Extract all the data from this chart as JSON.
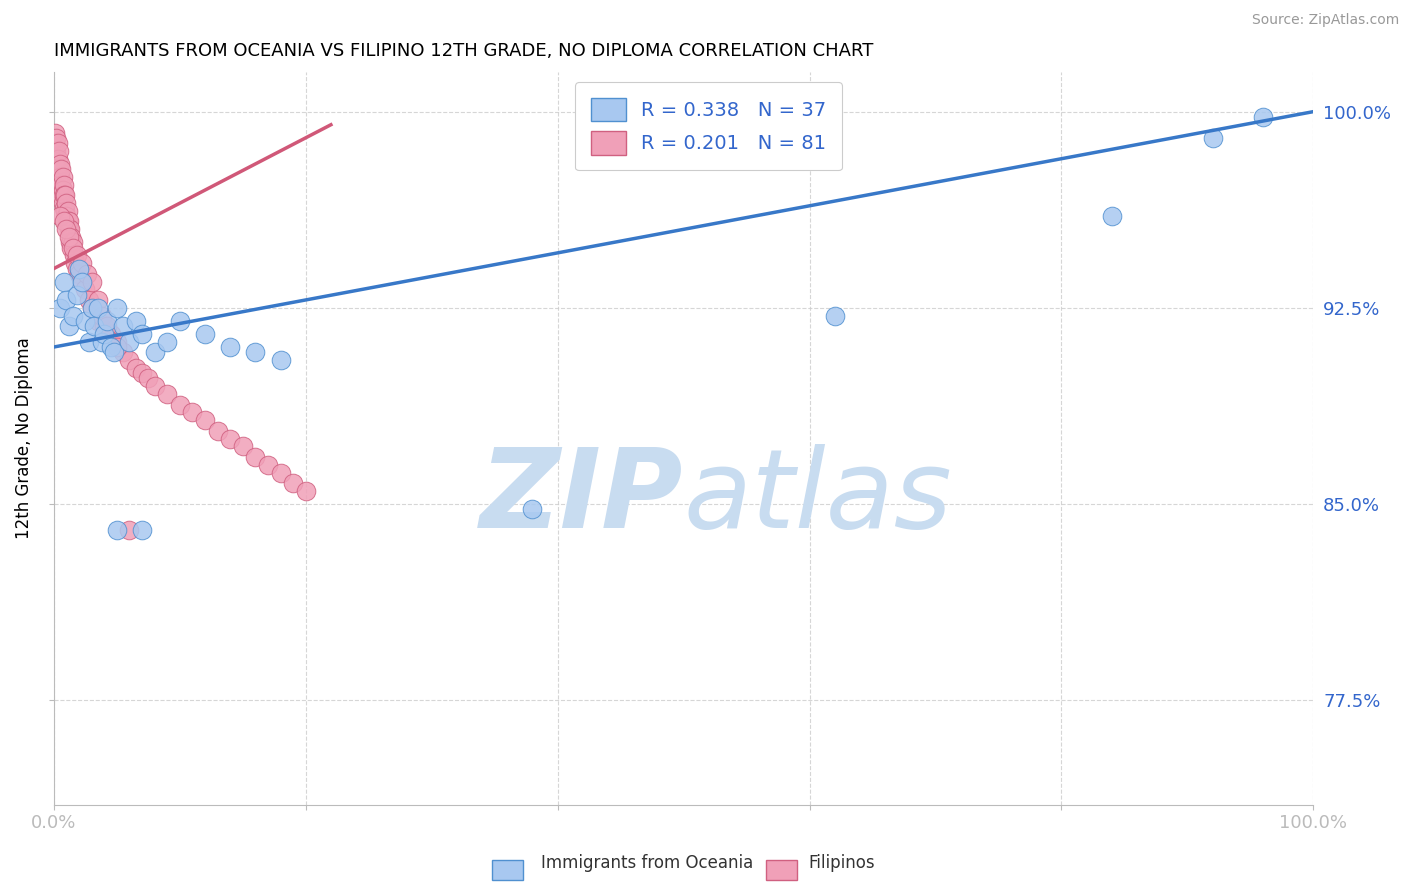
{
  "title": "IMMIGRANTS FROM OCEANIA VS FILIPINO 12TH GRADE, NO DIPLOMA CORRELATION CHART",
  "source": "Source: ZipAtlas.com",
  "ylabel": "12th Grade, No Diploma",
  "legend_blue_r": "R = 0.338",
  "legend_blue_n": "N = 37",
  "legend_pink_r": "R = 0.201",
  "legend_pink_n": "N = 81",
  "blue_color": "#A8C8F0",
  "blue_edge": "#5090D0",
  "pink_color": "#F0A0B8",
  "pink_edge": "#D06080",
  "trend_blue_color": "#3878C8",
  "trend_pink_color": "#D05878",
  "watermark_color": "#C8DCF0",
  "xlim": [
    0.0,
    1.0
  ],
  "ylim": [
    0.735,
    1.015
  ],
  "yticks": [
    0.775,
    0.85,
    0.925,
    1.0
  ],
  "ytick_labels": [
    "77.5%",
    "85.0%",
    "92.5%",
    "100.0%"
  ],
  "xticks": [
    0.0,
    0.2,
    0.4,
    0.6,
    0.8,
    1.0
  ],
  "xtick_labels_show": [
    "0.0%",
    "",
    "",
    "",
    "",
    "100.0%"
  ],
  "blue_scatter_x": [
    0.005,
    0.008,
    0.01,
    0.012,
    0.015,
    0.018,
    0.02,
    0.022,
    0.025,
    0.028,
    0.03,
    0.032,
    0.035,
    0.038,
    0.04,
    0.042,
    0.045,
    0.048,
    0.05,
    0.055,
    0.06,
    0.065,
    0.07,
    0.08,
    0.09,
    0.1,
    0.12,
    0.14,
    0.16,
    0.18,
    0.05,
    0.07,
    0.38,
    0.62,
    0.84,
    0.92,
    0.96
  ],
  "blue_scatter_y": [
    0.925,
    0.935,
    0.928,
    0.918,
    0.922,
    0.93,
    0.94,
    0.935,
    0.92,
    0.912,
    0.925,
    0.918,
    0.925,
    0.912,
    0.915,
    0.92,
    0.91,
    0.908,
    0.925,
    0.918,
    0.912,
    0.92,
    0.915,
    0.908,
    0.912,
    0.92,
    0.915,
    0.91,
    0.908,
    0.905,
    0.84,
    0.84,
    0.848,
    0.922,
    0.96,
    0.99,
    0.998
  ],
  "pink_scatter_x": [
    0.001,
    0.001,
    0.001,
    0.002,
    0.002,
    0.002,
    0.003,
    0.003,
    0.003,
    0.004,
    0.004,
    0.004,
    0.005,
    0.005,
    0.005,
    0.006,
    0.006,
    0.006,
    0.007,
    0.007,
    0.007,
    0.008,
    0.008,
    0.008,
    0.009,
    0.009,
    0.01,
    0.01,
    0.011,
    0.011,
    0.012,
    0.012,
    0.013,
    0.013,
    0.014,
    0.014,
    0.015,
    0.016,
    0.017,
    0.018,
    0.02,
    0.022,
    0.025,
    0.028,
    0.03,
    0.035,
    0.04,
    0.045,
    0.05,
    0.055,
    0.06,
    0.065,
    0.07,
    0.075,
    0.08,
    0.09,
    0.1,
    0.11,
    0.12,
    0.13,
    0.14,
    0.15,
    0.16,
    0.17,
    0.18,
    0.19,
    0.2,
    0.005,
    0.008,
    0.01,
    0.012,
    0.015,
    0.018,
    0.022,
    0.026,
    0.03,
    0.035,
    0.038,
    0.042,
    0.05,
    0.06
  ],
  "pink_scatter_y": [
    0.992,
    0.988,
    0.985,
    0.99,
    0.985,
    0.982,
    0.988,
    0.982,
    0.978,
    0.985,
    0.978,
    0.975,
    0.98,
    0.975,
    0.97,
    0.978,
    0.972,
    0.968,
    0.975,
    0.97,
    0.965,
    0.972,
    0.968,
    0.963,
    0.968,
    0.962,
    0.965,
    0.96,
    0.962,
    0.958,
    0.958,
    0.955,
    0.955,
    0.95,
    0.952,
    0.948,
    0.95,
    0.945,
    0.942,
    0.94,
    0.938,
    0.935,
    0.932,
    0.928,
    0.925,
    0.92,
    0.918,
    0.915,
    0.912,
    0.908,
    0.905,
    0.902,
    0.9,
    0.898,
    0.895,
    0.892,
    0.888,
    0.885,
    0.882,
    0.878,
    0.875,
    0.872,
    0.868,
    0.865,
    0.862,
    0.858,
    0.855,
    0.96,
    0.958,
    0.955,
    0.952,
    0.948,
    0.945,
    0.942,
    0.938,
    0.935,
    0.928,
    0.922,
    0.918,
    0.91,
    0.84
  ],
  "blue_trend_x": [
    0.0,
    1.0
  ],
  "blue_trend_y": [
    0.91,
    1.0
  ],
  "pink_trend_x": [
    0.0,
    0.22
  ],
  "pink_trend_y": [
    0.94,
    0.995
  ]
}
